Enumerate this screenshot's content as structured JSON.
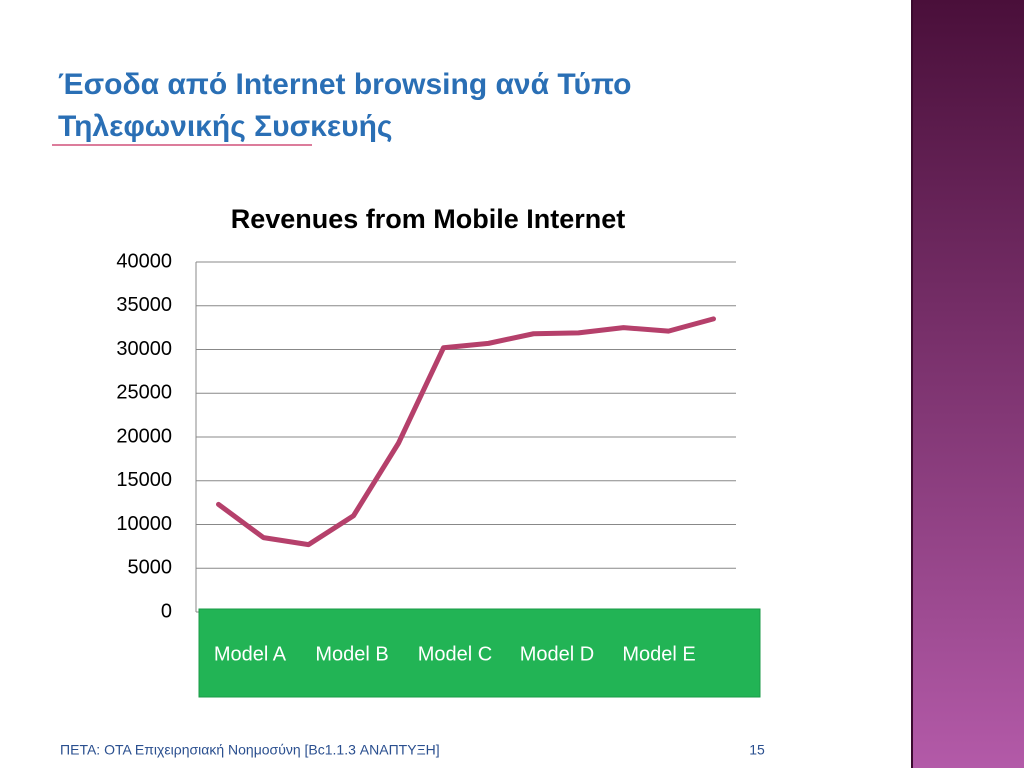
{
  "header": {
    "title_line1": "Έσοδα από Internet browsing ανά Τύπο",
    "title_line2": "Τηλεφωνικής Συσκευής"
  },
  "chart_data": {
    "type": "line",
    "title": "Revenues from Mobile Internet",
    "categories": [
      null,
      null,
      null,
      null,
      null,
      null,
      null,
      null,
      null,
      null,
      null,
      null
    ],
    "series": [
      {
        "name": "Revenues",
        "color": "#b5406b",
        "values": [
          12300,
          8500,
          7700,
          11000,
          19300,
          30200,
          30700,
          31800,
          31900,
          32500,
          32100,
          33500
        ]
      }
    ],
    "ylim": [
      0,
      40000
    ],
    "yticks": [
      0,
      5000,
      10000,
      15000,
      20000,
      25000,
      30000,
      35000,
      40000
    ],
    "grid": true,
    "label_box": [
      "Model A",
      "Model B",
      "Model C",
      "Model D",
      "Model E"
    ]
  },
  "footer": {
    "text": "ΠΕΤΑ: ΟΤΑ Επιχειρησιακή Νοημοσύνη [Βc1.1.3 ΑΝΑΠΤΥΞΗ]",
    "page": "15"
  }
}
